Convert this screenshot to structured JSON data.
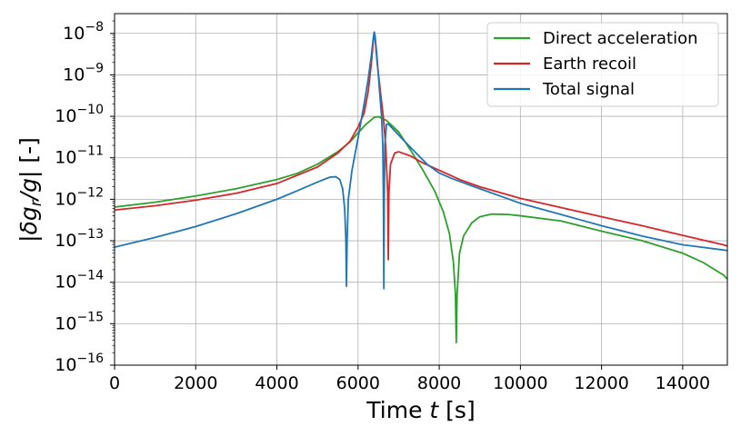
{
  "chart_data": {
    "type": "line",
    "xlabel": "Time t [s]",
    "ylabel": "|δg_r/g| [-]",
    "xlim": [
      0,
      15100
    ],
    "ylim": [
      1e-16,
      3e-08
    ],
    "yscale": "log",
    "x_ticks": [
      0,
      2000,
      4000,
      6000,
      8000,
      10000,
      12000,
      14000
    ],
    "y_tick_exponents": [
      -16,
      -15,
      -14,
      -13,
      -12,
      -11,
      -10,
      -9,
      -8
    ],
    "grid": true,
    "legend_position": "top-right",
    "series": [
      {
        "name": "Direct acceleration",
        "color": "#2ca02c",
        "points": [
          [
            0,
            6.5e-13
          ],
          [
            1000,
            8.5e-13
          ],
          [
            2000,
            1.2e-12
          ],
          [
            3000,
            1.8e-12
          ],
          [
            4000,
            3e-12
          ],
          [
            4500,
            4.2e-12
          ],
          [
            5000,
            7e-12
          ],
          [
            5500,
            1.4e-11
          ],
          [
            5800,
            2.4e-11
          ],
          [
            6000,
            4e-11
          ],
          [
            6200,
            6.5e-11
          ],
          [
            6400,
            9.5e-11
          ],
          [
            6500,
            9.8e-11
          ],
          [
            6700,
            8e-11
          ],
          [
            7000,
            4.2e-11
          ],
          [
            7300,
            1.5e-11
          ],
          [
            7600,
            5e-12
          ],
          [
            7900,
            1.5e-12
          ],
          [
            8100,
            5e-13
          ],
          [
            8250,
            1.5e-13
          ],
          [
            8350,
            3e-14
          ],
          [
            8400,
            5e-15
          ],
          [
            8420,
            3.5e-16
          ],
          [
            8440,
            5e-15
          ],
          [
            8500,
            5e-14
          ],
          [
            8600,
            1.3e-13
          ],
          [
            8800,
            2.7e-13
          ],
          [
            9000,
            3.8e-13
          ],
          [
            9300,
            4.4e-13
          ],
          [
            9700,
            4.3e-13
          ],
          [
            10000,
            4e-13
          ],
          [
            11000,
            3e-13
          ],
          [
            12000,
            1.7e-13
          ],
          [
            13000,
            1e-13
          ],
          [
            14000,
            5e-14
          ],
          [
            14500,
            3e-14
          ],
          [
            15000,
            1.5e-14
          ],
          [
            15100,
            1.2e-14
          ]
        ]
      },
      {
        "name": "Earth recoil",
        "color": "#d62728",
        "points": [
          [
            0,
            5.5e-13
          ],
          [
            1000,
            7e-13
          ],
          [
            2000,
            9.5e-13
          ],
          [
            3000,
            1.4e-12
          ],
          [
            4000,
            2.4e-12
          ],
          [
            5000,
            6e-12
          ],
          [
            5500,
            1.3e-11
          ],
          [
            5800,
            2.5e-11
          ],
          [
            6000,
            5.5e-11
          ],
          [
            6150,
            1.2e-10
          ],
          [
            6250,
            4e-10
          ],
          [
            6330,
            2e-09
          ],
          [
            6380,
            7.5e-09
          ],
          [
            6400,
            1.05e-08
          ],
          [
            6420,
            7.5e-09
          ],
          [
            6470,
            2e-09
          ],
          [
            6550,
            4e-10
          ],
          [
            6620,
            1e-10
          ],
          [
            6680,
            2e-11
          ],
          [
            6730,
            1.5e-12
          ],
          [
            6745,
            3.5e-14
          ],
          [
            6760,
            1.5e-12
          ],
          [
            6800,
            7e-12
          ],
          [
            6900,
            1.3e-11
          ],
          [
            7000,
            1.4e-11
          ],
          [
            7300,
            1.1e-11
          ],
          [
            7600,
            7.5e-12
          ],
          [
            8000,
            5e-12
          ],
          [
            8500,
            3e-12
          ],
          [
            9000,
            2e-12
          ],
          [
            10000,
            1.05e-12
          ],
          [
            11000,
            6.3e-13
          ],
          [
            12000,
            3.8e-13
          ],
          [
            13000,
            2.3e-13
          ],
          [
            14000,
            1.35e-13
          ],
          [
            15000,
            8e-14
          ],
          [
            15100,
            7.5e-14
          ]
        ]
      },
      {
        "name": "Total signal",
        "color": "#1f77b4",
        "points": [
          [
            0,
            7e-14
          ],
          [
            1000,
            1.2e-13
          ],
          [
            2000,
            2.2e-13
          ],
          [
            3000,
            4.5e-13
          ],
          [
            4000,
            1e-12
          ],
          [
            4500,
            1.6e-12
          ],
          [
            5000,
            2.6e-12
          ],
          [
            5300,
            3.4e-12
          ],
          [
            5450,
            3.5e-12
          ],
          [
            5550,
            3e-12
          ],
          [
            5620,
            1.8e-12
          ],
          [
            5670,
            6e-13
          ],
          [
            5700,
            1e-13
          ],
          [
            5715,
            8e-15
          ],
          [
            5730,
            1e-13
          ],
          [
            5760,
            1e-12
          ],
          [
            5850,
            5e-12
          ],
          [
            6000,
            3e-11
          ],
          [
            6150,
            2e-10
          ],
          [
            6250,
            8e-10
          ],
          [
            6330,
            3e-09
          ],
          [
            6380,
            8.5e-09
          ],
          [
            6400,
            1.08e-08
          ],
          [
            6420,
            8.5e-09
          ],
          [
            6470,
            2.5e-09
          ],
          [
            6530,
            4e-10
          ],
          [
            6580,
            1e-10
          ],
          [
            6610,
            2e-11
          ],
          [
            6625,
            1e-12
          ],
          [
            6635,
            7e-15
          ],
          [
            6645,
            1e-12
          ],
          [
            6660,
            2e-11
          ],
          [
            6700,
            6.5e-11
          ],
          [
            6750,
            6.5e-11
          ],
          [
            6900,
            4.5e-11
          ],
          [
            7100,
            2.8e-11
          ],
          [
            7400,
            1.4e-11
          ],
          [
            7700,
            7e-12
          ],
          [
            8000,
            4.3e-12
          ],
          [
            8300,
            3.2e-12
          ],
          [
            8700,
            2.3e-12
          ],
          [
            9000,
            1.8e-12
          ],
          [
            10000,
            8e-13
          ],
          [
            11000,
            4.3e-13
          ],
          [
            12000,
            2.3e-13
          ],
          [
            13000,
            1.3e-13
          ],
          [
            14000,
            8e-14
          ],
          [
            15000,
            6e-14
          ],
          [
            15100,
            5.8e-14
          ]
        ]
      }
    ]
  }
}
